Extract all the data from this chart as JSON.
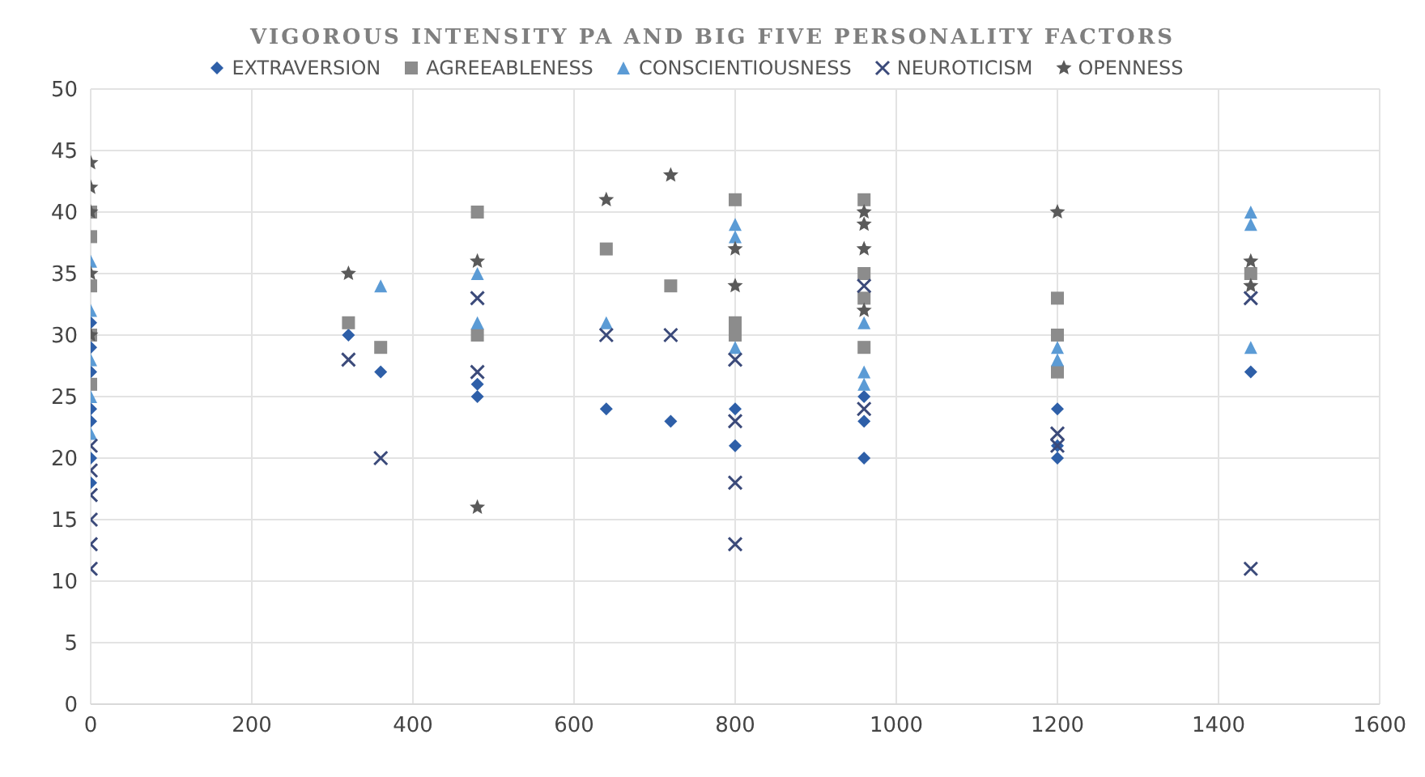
{
  "chart_data": {
    "type": "scatter",
    "title": "VIGOROUS INTENSITY PA AND BIG FIVE PERSONALITY FACTORS",
    "xlim": [
      0,
      1600
    ],
    "xticks": [
      0,
      200,
      400,
      600,
      800,
      1000,
      1200,
      1400,
      1600
    ],
    "ylim": [
      0,
      50
    ],
    "yticks": [
      0,
      5,
      10,
      15,
      20,
      25,
      30,
      35,
      40,
      45,
      50
    ],
    "grid": true,
    "legend": "top",
    "series": [
      {
        "name": "EXTRAVERSION",
        "color": "#2e5fa8",
        "marker": "diamond",
        "x": [
          0,
          0,
          0,
          0,
          0,
          0,
          0,
          320,
          360,
          480,
          480,
          640,
          720,
          800,
          800,
          960,
          960,
          960,
          1200,
          1200,
          1200,
          1440
        ],
        "values": [
          18,
          20,
          23,
          24,
          27,
          29,
          31,
          30,
          27,
          25,
          26,
          24,
          23,
          21,
          24,
          20,
          23,
          25,
          20,
          21,
          24,
          27
        ]
      },
      {
        "name": "AGREEABLENESS",
        "color": "#8c8c8c",
        "marker": "square",
        "x": [
          0,
          0,
          0,
          0,
          0,
          320,
          360,
          480,
          480,
          640,
          720,
          800,
          800,
          800,
          960,
          960,
          960,
          960,
          1200,
          1200,
          1200,
          1440
        ],
        "values": [
          26,
          30,
          34,
          38,
          40,
          31,
          29,
          40,
          30,
          37,
          34,
          41,
          31,
          30,
          41,
          35,
          33,
          29,
          33,
          30,
          27,
          35
        ]
      },
      {
        "name": "CONSCIENTIOUSNESS",
        "color": "#5b9bd5",
        "marker": "triangle",
        "x": [
          0,
          0,
          0,
          0,
          0,
          360,
          480,
          480,
          640,
          800,
          800,
          800,
          960,
          960,
          960,
          1200,
          1200,
          1440,
          1440,
          1440
        ],
        "values": [
          22,
          25,
          28,
          32,
          36,
          34,
          31,
          35,
          31,
          39,
          38,
          29,
          31,
          27,
          26,
          29,
          28,
          40,
          39,
          29
        ]
      },
      {
        "name": "NEUROTICISM",
        "color": "#3b4a7a",
        "marker": "cross",
        "x": [
          0,
          0,
          0,
          0,
          0,
          0,
          320,
          360,
          480,
          480,
          640,
          720,
          800,
          800,
          800,
          800,
          960,
          960,
          1200,
          1200,
          1440,
          1440
        ],
        "values": [
          11,
          13,
          15,
          17,
          19,
          21,
          28,
          20,
          27,
          33,
          30,
          30,
          13,
          18,
          23,
          28,
          24,
          34,
          22,
          21,
          11,
          33
        ]
      },
      {
        "name": "OPENNESS",
        "color": "#5a5a5a",
        "marker": "star",
        "x": [
          0,
          0,
          0,
          0,
          0,
          320,
          480,
          480,
          640,
          720,
          800,
          800,
          960,
          960,
          960,
          960,
          1200,
          1440,
          1440
        ],
        "values": [
          30,
          35,
          40,
          42,
          44,
          35,
          16,
          36,
          41,
          43,
          34,
          37,
          40,
          39,
          37,
          32,
          40,
          36,
          34
        ]
      }
    ]
  }
}
